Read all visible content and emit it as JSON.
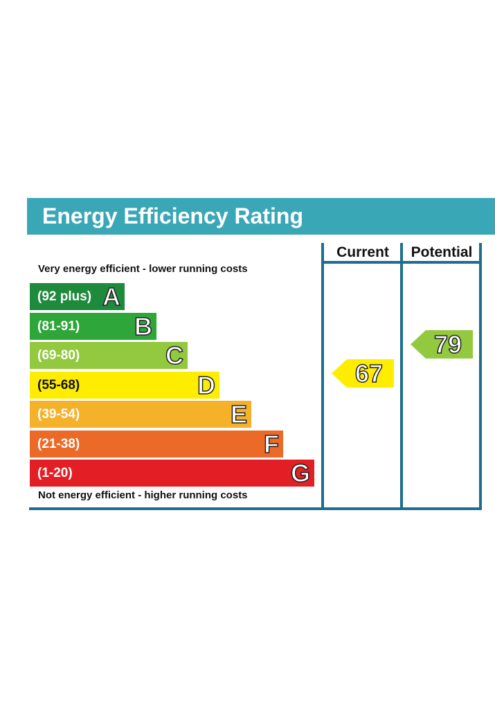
{
  "header": {
    "title": "Energy Efficiency Rating"
  },
  "captions": {
    "top": "Very energy efficient - lower running costs",
    "bottom": "Not energy efficient - higher running costs"
  },
  "columns": {
    "current": "Current",
    "potential": "Potential"
  },
  "chart_data": {
    "type": "bar",
    "categories": [
      "A",
      "B",
      "C",
      "D",
      "E",
      "F",
      "G"
    ],
    "bands": [
      {
        "letter": "A",
        "range": "(92 plus)",
        "color": "#1e8a3c"
      },
      {
        "letter": "B",
        "range": "(81-91)",
        "color": "#2fa63a"
      },
      {
        "letter": "C",
        "range": "(69-80)",
        "color": "#93c93e"
      },
      {
        "letter": "D",
        "range": "(55-68)",
        "color": "#ffed00"
      },
      {
        "letter": "E",
        "range": "(39-54)",
        "color": "#f5b12a"
      },
      {
        "letter": "F",
        "range": "(21-38)",
        "color": "#ec6a27"
      },
      {
        "letter": "G",
        "range": "(1-20)",
        "color": "#e31e24"
      }
    ],
    "current": {
      "value": "67",
      "band": "D",
      "color": "#ffed00"
    },
    "potential": {
      "value": "79",
      "band": "C",
      "color": "#93c93e"
    }
  }
}
